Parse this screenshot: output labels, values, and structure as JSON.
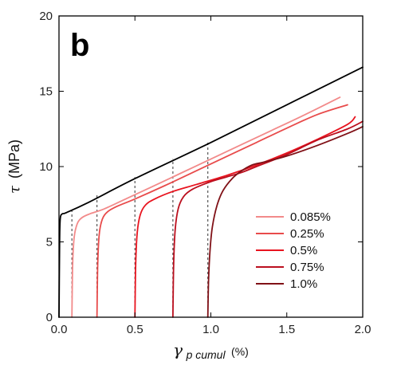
{
  "chart_data": {
    "type": "line",
    "panel_label": "b",
    "xlabel": {
      "symbol": "γ",
      "subscript": "p cumul",
      "unit": "(%)"
    },
    "ylabel": {
      "symbol": "τ",
      "unit": "(MPa)"
    },
    "xlim": [
      0,
      2.0
    ],
    "ylim": [
      0,
      20
    ],
    "xticks": [
      "0.0",
      "0.5",
      "1.0",
      "1.5",
      "2.0"
    ],
    "yticks": [
      "0",
      "5",
      "10",
      "15",
      "20"
    ],
    "xtick_values": [
      0,
      0.5,
      1.0,
      1.5,
      2.0
    ],
    "ytick_values": [
      0,
      5,
      10,
      15,
      20
    ],
    "grid": false,
    "legend_placement": "bottom-right",
    "series": [
      {
        "name": "",
        "color": "#000000",
        "x": [
          0.0,
          0.004,
          0.008,
          0.02,
          0.05,
          0.2,
          0.5,
          1.0,
          1.5,
          2.0
        ],
        "y": [
          0.0,
          5.0,
          6.5,
          6.85,
          6.95,
          7.65,
          9.2,
          11.6,
          14.1,
          16.6
        ]
      },
      {
        "name": "0.085%",
        "color": "#f28a8a",
        "x": [
          0.085,
          0.09,
          0.1,
          0.12,
          0.15,
          0.2,
          0.3,
          0.45,
          0.6,
          0.8,
          1.0,
          1.2,
          1.4,
          1.6,
          1.85
        ],
        "y": [
          0.0,
          3.5,
          5.3,
          6.2,
          6.6,
          6.85,
          7.2,
          7.9,
          8.6,
          9.55,
          10.5,
          11.45,
          12.4,
          13.35,
          14.6
        ]
      },
      {
        "name": "0.25%",
        "color": "#e84b4b",
        "x": [
          0.25,
          0.255,
          0.265,
          0.285,
          0.32,
          0.38,
          0.5,
          0.7,
          0.9,
          1.1,
          1.3,
          1.5,
          1.7,
          1.9
        ],
        "y": [
          0.0,
          3.5,
          5.5,
          6.5,
          7.0,
          7.35,
          7.85,
          8.75,
          9.7,
          10.65,
          11.6,
          12.55,
          13.45,
          14.1
        ]
      },
      {
        "name": "0.5%",
        "color": "#e8141f",
        "x": [
          0.5,
          0.505,
          0.515,
          0.535,
          0.57,
          0.63,
          0.75,
          0.9,
          1.1,
          1.3,
          1.5,
          1.7,
          1.9,
          1.95
        ],
        "y": [
          0.0,
          3.5,
          5.6,
          6.8,
          7.45,
          7.85,
          8.35,
          8.8,
          9.4,
          10.1,
          10.9,
          11.8,
          12.8,
          13.3
        ]
      },
      {
        "name": "0.75%",
        "color": "#bb0f1e",
        "x": [
          0.75,
          0.755,
          0.765,
          0.785,
          0.82,
          0.88,
          1.0,
          1.1,
          1.2,
          1.3,
          1.5,
          1.7,
          1.9,
          2.0
        ],
        "y": [
          0.0,
          3.5,
          5.8,
          7.2,
          8.0,
          8.5,
          9.0,
          9.3,
          9.6,
          10.0,
          10.8,
          11.75,
          12.5,
          13.0
        ]
      },
      {
        "name": "1.0%",
        "color": "#801117",
        "x": [
          0.98,
          0.985,
          0.995,
          1.01,
          1.04,
          1.08,
          1.14,
          1.2,
          1.27,
          1.35,
          1.5,
          1.7,
          1.9,
          2.0
        ],
        "y": [
          0.0,
          2.5,
          4.5,
          6.0,
          7.4,
          8.4,
          9.2,
          9.7,
          10.1,
          10.3,
          10.7,
          11.4,
          12.2,
          12.65
        ]
      }
    ],
    "guides": {
      "color": "#555555",
      "x": [
        0.085,
        0.25,
        0.5,
        0.75,
        0.98
      ],
      "y_top": [
        7.1,
        8.1,
        9.3,
        10.5,
        11.7
      ]
    }
  }
}
